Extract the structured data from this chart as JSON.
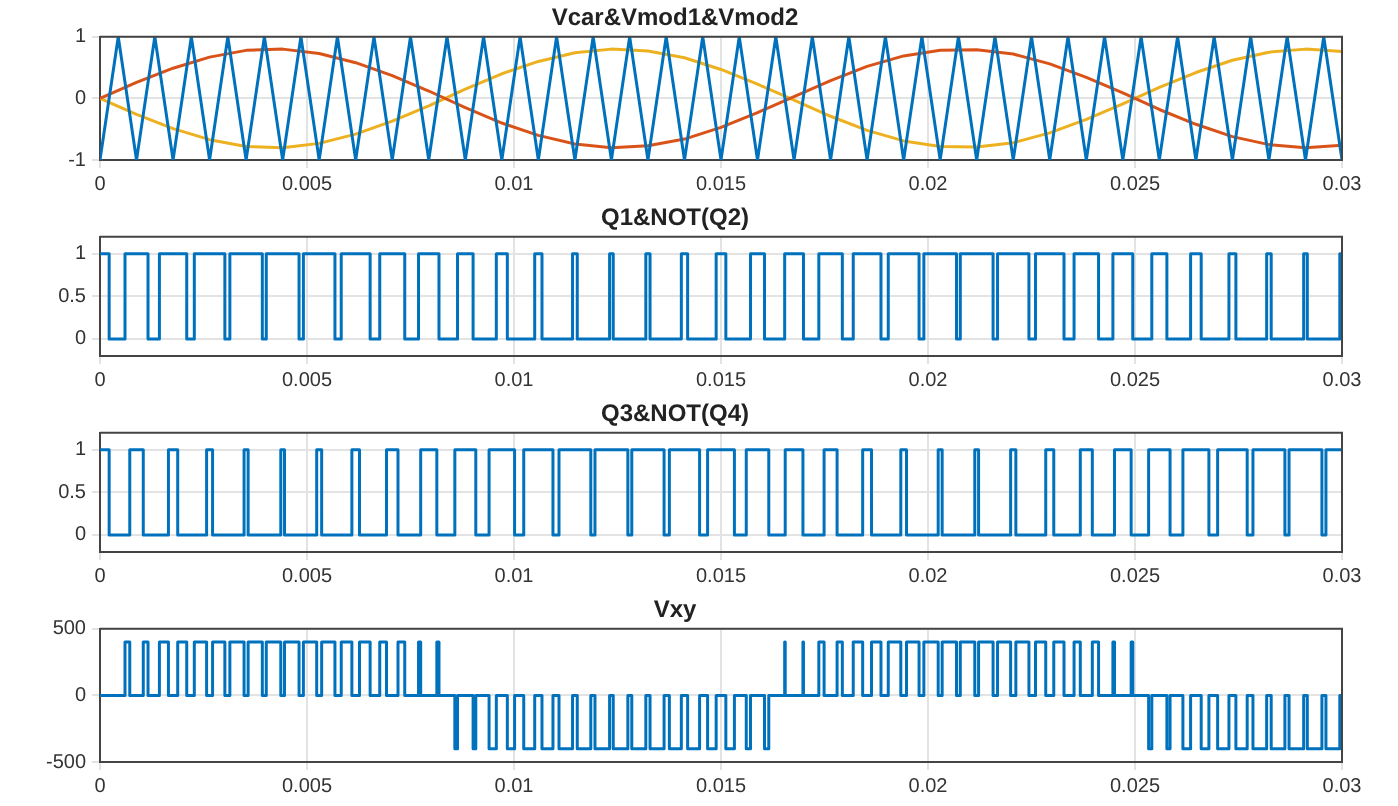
{
  "chart_data": [
    {
      "type": "line",
      "title": "Vcar&Vmod1&Vmod2",
      "xlim": [
        0,
        0.03
      ],
      "xticks": [
        0,
        0.005,
        0.01,
        0.015,
        0.02,
        0.025,
        0.03
      ],
      "ylim": [
        -1,
        1
      ],
      "yticks": [
        -1,
        0,
        1
      ],
      "grid": true,
      "legend": false,
      "marker": "none",
      "series": [
        {
          "color": "#0072bd",
          "x": [
            0,
            0.000441,
            0.000882,
            0.001324,
            0.001765,
            0.002206,
            0.002647,
            0.003088,
            0.003529,
            0.003971,
            0.004412,
            0.004853,
            0.005294,
            0.005735,
            0.006176,
            0.006618,
            0.007059,
            0.0075,
            0.007941,
            0.008382,
            0.008824,
            0.009265,
            0.009706,
            0.010147,
            0.010588,
            0.011029,
            0.011471,
            0.011912,
            0.012353,
            0.012794,
            0.013235,
            0.013676,
            0.014118,
            0.014559,
            0.015,
            0.015441,
            0.015882,
            0.016324,
            0.016765,
            0.017206,
            0.017647,
            0.018088,
            0.018529,
            0.018971,
            0.019412,
            0.019853,
            0.020294,
            0.020735,
            0.021176,
            0.021618,
            0.022059,
            0.0225,
            0.022941,
            0.023382,
            0.023824,
            0.024265,
            0.024706,
            0.025147,
            0.025588,
            0.026029,
            0.026471,
            0.026912,
            0.027353,
            0.027794,
            0.028235,
            0.028676,
            0.029118,
            0.029559,
            0.03
          ],
          "values": [
            -1,
            1,
            -1,
            1,
            -1,
            1,
            -1,
            1,
            -1,
            1,
            -1,
            1,
            -1,
            1,
            -1,
            1,
            -1,
            1,
            -1,
            1,
            -1,
            1,
            -1,
            1,
            -1,
            1,
            -1,
            1,
            -1,
            1,
            -1,
            1,
            -1,
            1,
            -1,
            1,
            -1,
            1,
            -1,
            1,
            -1,
            1,
            -1,
            1,
            -1,
            1,
            -1,
            1,
            -1,
            1,
            -1,
            1,
            -1,
            1,
            -1,
            1,
            -1,
            1,
            -1,
            1,
            -1,
            1,
            -1,
            1,
            -1,
            1,
            -1,
            1,
            -1
          ]
        },
        {
          "color": "#d95319",
          "x": [
            0,
            0.000882,
            0.001765,
            0.002647,
            0.003529,
            0.004412,
            0.005294,
            0.006176,
            0.007059,
            0.007941,
            0.008824,
            0.009706,
            0.010588,
            0.011471,
            0.012353,
            0.013235,
            0.014118,
            0.015,
            0.015882,
            0.016765,
            0.017647,
            0.018529,
            0.019412,
            0.020294,
            0.021176,
            0.022059,
            0.022941,
            0.023824,
            0.024706,
            0.025588,
            0.026471,
            0.027353,
            0.028235,
            0.029118,
            0.03
          ],
          "values": [
            0,
            0.26,
            0.49,
            0.67,
            0.78,
            0.8,
            0.73,
            0.58,
            0.37,
            0.12,
            -0.15,
            -0.4,
            -0.6,
            -0.74,
            -0.8,
            -0.77,
            -0.66,
            -0.47,
            -0.23,
            0.03,
            0.29,
            0.52,
            0.69,
            0.78,
            0.79,
            0.72,
            0.56,
            0.34,
            0.09,
            -0.18,
            -0.42,
            -0.62,
            -0.75,
            -0.8,
            -0.76
          ]
        },
        {
          "color": "#edb120",
          "x": [
            0,
            0.000882,
            0.001765,
            0.002647,
            0.003529,
            0.004412,
            0.005294,
            0.006176,
            0.007059,
            0.007941,
            0.008824,
            0.009706,
            0.010588,
            0.011471,
            0.012353,
            0.013235,
            0.014118,
            0.015,
            0.015882,
            0.016765,
            0.017647,
            0.018529,
            0.019412,
            0.020294,
            0.021176,
            0.022059,
            0.022941,
            0.023824,
            0.024706,
            0.025588,
            0.026471,
            0.027353,
            0.028235,
            0.029118,
            0.03
          ],
          "values": [
            0,
            -0.26,
            -0.49,
            -0.67,
            -0.78,
            -0.8,
            -0.73,
            -0.58,
            -0.37,
            -0.12,
            0.15,
            0.4,
            0.6,
            0.74,
            0.8,
            0.77,
            0.66,
            0.47,
            0.23,
            -0.03,
            -0.29,
            -0.52,
            -0.69,
            -0.78,
            -0.79,
            -0.72,
            -0.56,
            -0.34,
            -0.09,
            0.18,
            0.42,
            0.62,
            0.75,
            0.8,
            0.76
          ]
        }
      ]
    },
    {
      "type": "step",
      "title": "Q1&NOT(Q2)",
      "xlim": [
        0,
        0.03
      ],
      "xticks": [
        0,
        0.005,
        0.01,
        0.015,
        0.02,
        0.025,
        0.03
      ],
      "ylim": [
        -0.2,
        1.2
      ],
      "yticks": [
        0,
        0.5,
        1
      ],
      "grid": true,
      "legend": false,
      "marker": "none",
      "series": [
        {
          "color": "#0072bd",
          "x": [
            0,
            0.000221,
            0.000604,
            0.00116,
            0.001435,
            0.002095,
            0.002278,
            0.003016,
            0.003137,
            0.003921,
            0.004016,
            0.004808,
            0.004913,
            0.005675,
            0.005827,
            0.006525,
            0.006757,
            0.007361,
            0.007694,
            0.008188,
            0.008636,
            0.009012,
            0.009573,
            0.009839,
            0.0105,
            0.010676,
            0.011414,
            0.011528,
            0.012309,
            0.012397,
            0.013184,
            0.013286,
            0.014042,
            0.014194,
            0.014883,
            0.015117,
            0.015713,
            0.016051,
            0.016538,
            0.016992,
            0.017363,
            0.017931,
            0.018194,
            0.018864,
            0.01904,
            0.019784,
            0.0199,
            0.020688,
            0.02078,
            0.021572,
            0.02168,
            0.022438,
            0.022597,
            0.023285,
            0.023528,
            0.02412,
            0.024466,
            0.024946,
            0.025406,
            0.02577,
            0.026343,
            0.026599,
            0.027269,
            0.027437,
            0.02818,
            0.02829,
            0.029074,
            0.029162,
            0.029947,
            0.03
          ],
          "values": [
            1,
            0,
            1,
            0,
            1,
            0,
            1,
            0,
            1,
            0,
            1,
            0,
            1,
            0,
            1,
            0,
            1,
            0,
            1,
            0,
            1,
            0,
            1,
            0,
            1,
            0,
            1,
            0,
            1,
            0,
            1,
            0,
            1,
            0,
            1,
            0,
            1,
            0,
            1,
            0,
            1,
            0,
            1,
            0,
            1,
            0,
            1,
            0,
            1,
            0,
            1,
            0,
            1,
            0,
            1,
            0,
            1,
            0,
            1,
            0,
            1,
            0,
            1,
            0,
            1,
            0,
            1,
            0,
            1,
            1
          ]
        }
      ]
    },
    {
      "type": "step",
      "title": "Q3&NOT(Q4)",
      "xlim": [
        0,
        0.03
      ],
      "xticks": [
        0,
        0.005,
        0.01,
        0.015,
        0.02,
        0.025,
        0.03
      ],
      "ylim": [
        -0.2,
        1.2
      ],
      "yticks": [
        0,
        0.5,
        1
      ],
      "grid": true,
      "legend": false,
      "marker": "none",
      "series": [
        {
          "color": "#0072bd",
          "x": [
            0,
            0.000221,
            0.000719,
            0.001045,
            0.001653,
            0.001877,
            0.002575,
            0.002719,
            0.00348,
            0.003578,
            0.004367,
            0.004457,
            0.005234,
            0.005354,
            0.006084,
            0.006268,
            0.00692,
            0.007198,
            0.007746,
            0.008136,
            0.008571,
            0.009077,
            0.009398,
            0.010014,
            0.010235,
            0.010941,
            0.011087,
            0.011855,
            0.011956,
            0.01275,
            0.012845,
            0.013625,
            0.013753,
            0.014483,
            0.014676,
            0.015324,
            0.01561,
            0.016154,
            0.016551,
            0.016979,
            0.01749,
            0.017804,
            0.018422,
            0.018636,
            0.019343,
            0.019481,
            0.020246,
            0.020342,
            0.02113,
            0.021222,
            0.021996,
            0.022122,
            0.022844,
            0.023038,
            0.023679,
            0.023969,
            0.024505,
            0.024907,
            0.025329,
            0.025847,
            0.026157,
            0.026785,
            0.026996,
            0.02771,
            0.027849,
            0.028621,
            0.028721,
            0.029515,
            0.029612,
            0.03
          ],
          "values": [
            1,
            0,
            1,
            0,
            1,
            0,
            1,
            0,
            1,
            0,
            1,
            0,
            1,
            0,
            1,
            0,
            1,
            0,
            1,
            0,
            1,
            0,
            1,
            0,
            1,
            0,
            1,
            0,
            1,
            0,
            1,
            0,
            1,
            0,
            1,
            0,
            1,
            0,
            1,
            0,
            1,
            0,
            1,
            0,
            1,
            0,
            1,
            0,
            1,
            0,
            1,
            0,
            1,
            0,
            1,
            0,
            1,
            0,
            1,
            0,
            1,
            0,
            1,
            0,
            1,
            0,
            1,
            0,
            1,
            1
          ]
        }
      ]
    },
    {
      "type": "step",
      "title": "Vxy",
      "xlim": [
        0,
        0.03
      ],
      "xticks": [
        0,
        0.005,
        0.01,
        0.015,
        0.02,
        0.025,
        0.03
      ],
      "ylim": [
        -500,
        500
      ],
      "yticks": [
        -500,
        0,
        500
      ],
      "grid": true,
      "legend": false,
      "marker": "none",
      "series": [
        {
          "color": "#0072bd",
          "x": [
            0,
            0.000604,
            0.000719,
            0.001045,
            0.00116,
            0.001435,
            0.001653,
            0.001877,
            0.002095,
            0.002278,
            0.002575,
            0.002719,
            0.003016,
            0.003137,
            0.00348,
            0.003578,
            0.003921,
            0.004016,
            0.004367,
            0.004457,
            0.004808,
            0.004913,
            0.005234,
            0.005354,
            0.005675,
            0.005827,
            0.006084,
            0.006268,
            0.006525,
            0.006757,
            0.00692,
            0.007198,
            0.007361,
            0.007694,
            0.007746,
            0.008136,
            0.008188,
            0.008571,
            0.008636,
            0.009012,
            0.009077,
            0.009398,
            0.009573,
            0.009839,
            0.010014,
            0.010235,
            0.0105,
            0.010676,
            0.010941,
            0.011087,
            0.011414,
            0.011528,
            0.011855,
            0.011956,
            0.012309,
            0.012397,
            0.01275,
            0.012845,
            0.013184,
            0.013286,
            0.013625,
            0.013753,
            0.014042,
            0.014194,
            0.014483,
            0.014676,
            0.014883,
            0.015117,
            0.015324,
            0.01561,
            0.015713,
            0.016051,
            0.016154,
            0.016538,
            0.016551,
            0.016979,
            0.016992,
            0.017363,
            0.01749,
            0.017804,
            0.017931,
            0.018194,
            0.018422,
            0.018636,
            0.018864,
            0.01904,
            0.019343,
            0.019481,
            0.019784,
            0.0199,
            0.020246,
            0.020342,
            0.020688,
            0.02078,
            0.02113,
            0.021222,
            0.021572,
            0.02168,
            0.021996,
            0.022122,
            0.022438,
            0.022597,
            0.022844,
            0.023038,
            0.023285,
            0.023528,
            0.023679,
            0.023969,
            0.02412,
            0.024466,
            0.024505,
            0.024907,
            0.024946,
            0.025329,
            0.025406,
            0.02577,
            0.025847,
            0.026157,
            0.026343,
            0.026599,
            0.026785,
            0.026996,
            0.027269,
            0.027437,
            0.02771,
            0.027849,
            0.02818,
            0.02829,
            0.028621,
            0.028721,
            0.029074,
            0.029162,
            0.029515,
            0.029612,
            0.029947,
            0.03
          ],
          "values": [
            0,
            400,
            0,
            400,
            0,
            400,
            0,
            400,
            0,
            400,
            0,
            400,
            0,
            400,
            0,
            400,
            0,
            400,
            0,
            400,
            0,
            400,
            0,
            400,
            0,
            400,
            0,
            400,
            0,
            400,
            0,
            400,
            0,
            400,
            0,
            400,
            0,
            -400,
            0,
            -400,
            0,
            -400,
            0,
            -400,
            0,
            -400,
            0,
            -400,
            0,
            -400,
            0,
            -400,
            0,
            -400,
            0,
            -400,
            0,
            -400,
            0,
            -400,
            0,
            -400,
            0,
            -400,
            0,
            -400,
            0,
            -400,
            0,
            -400,
            0,
            -400,
            0,
            400,
            0,
            400,
            0,
            400,
            0,
            400,
            0,
            400,
            0,
            400,
            0,
            400,
            0,
            400,
            0,
            400,
            0,
            400,
            0,
            400,
            0,
            400,
            0,
            400,
            0,
            400,
            0,
            400,
            0,
            400,
            0,
            400,
            0,
            400,
            0,
            400,
            0,
            400,
            0,
            -400,
            0,
            -400,
            0,
            -400,
            0,
            -400,
            0,
            -400,
            0,
            -400,
            0,
            -400,
            0,
            -400,
            0,
            -400,
            0,
            -400,
            0,
            -400,
            0,
            0
          ]
        }
      ]
    }
  ]
}
